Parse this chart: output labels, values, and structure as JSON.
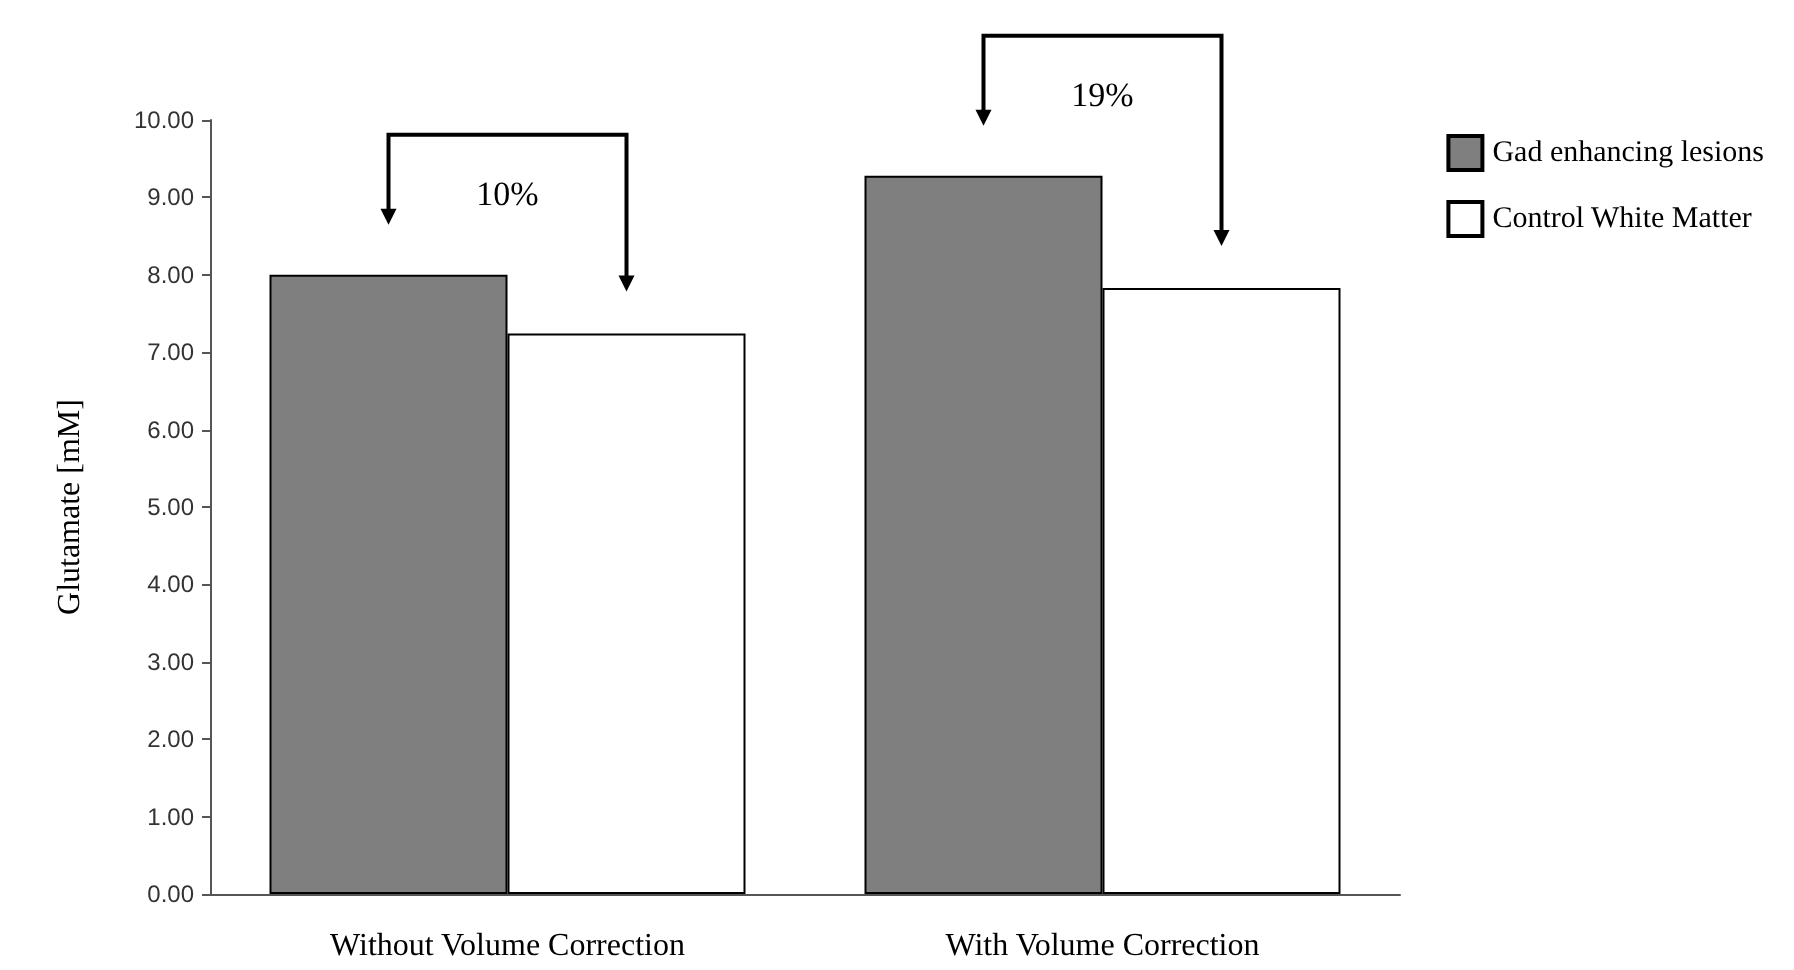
{
  "chart_data": {
    "type": "bar",
    "ylabel": "Glutamate [mM]",
    "categories": [
      "Without Volume Correction",
      "With Volume Correction"
    ],
    "series": [
      {
        "name": "Gad enhancing lesions",
        "color": "#7f7f7f",
        "values": [
          8.0,
          9.28
        ]
      },
      {
        "name": "Control White Matter",
        "color": "#ffffff",
        "values": [
          7.24,
          7.83
        ]
      }
    ],
    "ylim": [
      0,
      10
    ],
    "yticks": [
      {
        "value": 0,
        "label": "0.00"
      },
      {
        "value": 1,
        "label": "1.00"
      },
      {
        "value": 2,
        "label": "2.00"
      },
      {
        "value": 3,
        "label": "3.00"
      },
      {
        "value": 4,
        "label": "4.00"
      },
      {
        "value": 5,
        "label": "5.00"
      },
      {
        "value": 6,
        "label": "6.00"
      },
      {
        "value": 7,
        "label": "7.00"
      },
      {
        "value": 8,
        "label": "8.00"
      },
      {
        "value": 9,
        "label": "9.00"
      },
      {
        "value": 10,
        "label": "10.00"
      }
    ],
    "annotations": [
      "10%",
      "19%"
    ],
    "grid": false,
    "legend": "top right"
  }
}
